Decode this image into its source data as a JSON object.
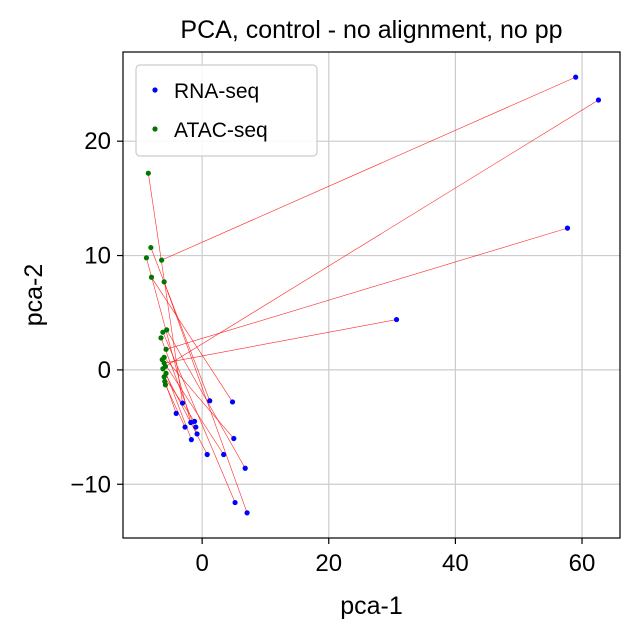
{
  "chart_data": {
    "type": "scatter",
    "title": "PCA, control - no alignment, no pp",
    "xlabel": "pca-1",
    "ylabel": "pca-2",
    "xlim": [
      -12.5,
      66
    ],
    "ylim": [
      -14.7,
      27.8
    ],
    "xticks": [
      0,
      20,
      40,
      60
    ],
    "xtick_labels": [
      "0",
      "20",
      "40",
      "60"
    ],
    "yticks": [
      -10,
      0,
      10,
      20
    ],
    "ytick_labels": [
      "−10",
      "0",
      "10",
      "20"
    ],
    "grid": true,
    "legend": {
      "placement": "top-left"
    },
    "link_color": "#ff0000",
    "series": [
      {
        "name": "RNA-seq",
        "color": "#0000ff",
        "points": [
          [
            59.0,
            25.6
          ],
          [
            62.6,
            23.6
          ],
          [
            57.7,
            12.4
          ],
          [
            30.7,
            4.4
          ],
          [
            4.8,
            -2.8
          ],
          [
            1.2,
            -2.7
          ],
          [
            -3.1,
            -2.9
          ],
          [
            -4.1,
            -3.8
          ],
          [
            -1.2,
            -4.5
          ],
          [
            -1.8,
            -4.6
          ],
          [
            -2.7,
            -5.0
          ],
          [
            -1.0,
            -5.0
          ],
          [
            -0.8,
            -5.6
          ],
          [
            -1.7,
            -6.1
          ],
          [
            5.0,
            -6.0
          ],
          [
            0.8,
            -7.4
          ],
          [
            3.4,
            -7.4
          ],
          [
            6.8,
            -8.6
          ],
          [
            5.2,
            -11.6
          ],
          [
            7.1,
            -12.5
          ]
        ]
      },
      {
        "name": "ATAC-seq",
        "color": "#007700",
        "points": [
          [
            -8.5,
            17.2
          ],
          [
            -8.1,
            10.7
          ],
          [
            -8.8,
            9.8
          ],
          [
            -6.4,
            9.6
          ],
          [
            -8.0,
            8.1
          ],
          [
            -6.0,
            7.7
          ],
          [
            -5.6,
            3.5
          ],
          [
            -6.2,
            3.3
          ],
          [
            -6.5,
            2.8
          ],
          [
            -5.7,
            1.8
          ],
          [
            -6.0,
            1.1
          ],
          [
            -6.3,
            0.9
          ],
          [
            -6.0,
            0.6
          ],
          [
            -5.8,
            0.3
          ],
          [
            -6.2,
            0.1
          ],
          [
            -5.7,
            -0.3
          ],
          [
            -6.0,
            -0.6
          ],
          [
            -5.9,
            -1.0
          ],
          [
            -5.8,
            -1.3
          ]
        ]
      }
    ],
    "links": [
      [
        [
          -6.4,
          9.6
        ],
        [
          59.0,
          25.6
        ]
      ],
      [
        [
          -5.8,
          0.3
        ],
        [
          62.6,
          23.6
        ]
      ],
      [
        [
          -5.7,
          1.8
        ],
        [
          57.7,
          12.4
        ]
      ],
      [
        [
          -6.0,
          0.6
        ],
        [
          30.7,
          4.4
        ]
      ],
      [
        [
          -8.0,
          8.1
        ],
        [
          4.8,
          -2.8
        ]
      ],
      [
        [
          -6.0,
          7.7
        ],
        [
          7.1,
          -12.5
        ]
      ],
      [
        [
          -8.5,
          17.2
        ],
        [
          -3.1,
          -2.9
        ]
      ],
      [
        [
          -8.1,
          10.7
        ],
        [
          1.2,
          -2.7
        ]
      ],
      [
        [
          -6.2,
          3.3
        ],
        [
          5.2,
          -11.6
        ]
      ],
      [
        [
          -5.6,
          3.5
        ],
        [
          6.8,
          -8.6
        ]
      ],
      [
        [
          -6.3,
          0.9
        ],
        [
          3.4,
          -7.4
        ]
      ],
      [
        [
          -6.0,
          1.1
        ],
        [
          5.0,
          -6.0
        ]
      ],
      [
        [
          -6.2,
          0.1
        ],
        [
          0.8,
          -7.4
        ]
      ],
      [
        [
          -5.7,
          -0.3
        ],
        [
          -1.7,
          -6.1
        ]
      ],
      [
        [
          -6.0,
          -0.6
        ],
        [
          -1.2,
          -4.5
        ]
      ],
      [
        [
          -5.9,
          -1.0
        ],
        [
          -4.1,
          -3.8
        ]
      ],
      [
        [
          -5.8,
          -1.3
        ],
        [
          -2.7,
          -5.0
        ]
      ],
      [
        [
          -6.5,
          2.8
        ],
        [
          -0.8,
          -5.6
        ]
      ],
      [
        [
          -8.8,
          9.8
        ],
        [
          -1.8,
          -4.6
        ]
      ]
    ]
  }
}
